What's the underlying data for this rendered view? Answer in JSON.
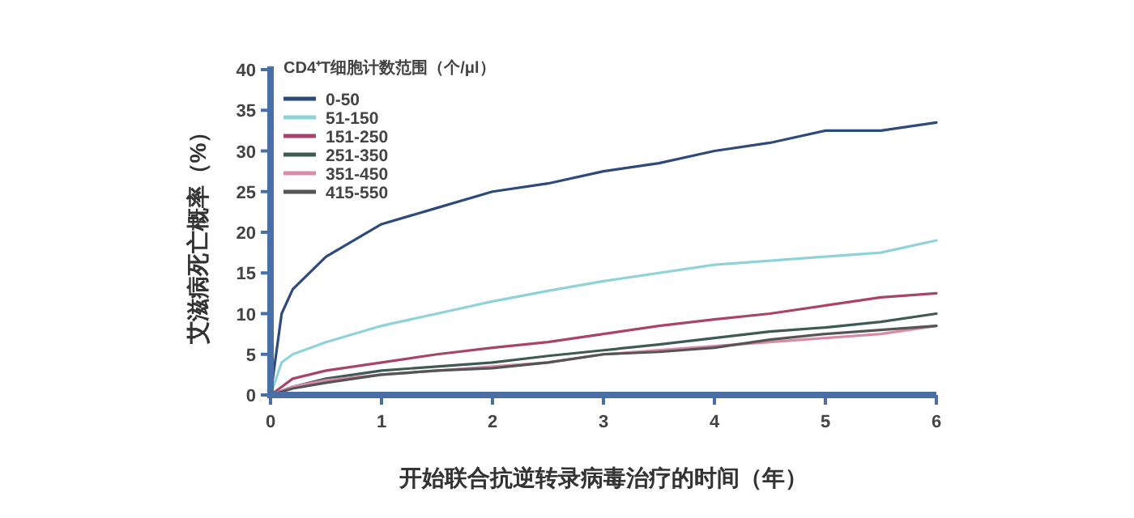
{
  "chart_data": {
    "type": "line",
    "legend_title": "CD4⁺T细胞计数范围（个/μl）",
    "xlabel": "开始联合抗逆转录病毒治疗的时间（年）",
    "ylabel": "艾滋病死亡概率（%）",
    "x": [
      0,
      0.1,
      0.2,
      0.5,
      1,
      1.5,
      2,
      2.5,
      3,
      3.5,
      4,
      4.5,
      5,
      5.5,
      6
    ],
    "series": [
      {
        "name": "0-50",
        "color": "#2e4a7a",
        "values": [
          0,
          10,
          13,
          17,
          21,
          23,
          25,
          26,
          27.5,
          28.5,
          30,
          31,
          32.5,
          32.5,
          33.5
        ]
      },
      {
        "name": "51-150",
        "color": "#8fd3d9",
        "values": [
          0,
          4,
          5,
          6.5,
          8.5,
          10,
          11.5,
          12.8,
          14,
          15,
          16,
          16.5,
          17,
          17.5,
          19
        ]
      },
      {
        "name": "151-250",
        "color": "#a8446a",
        "values": [
          0,
          1,
          2,
          3,
          4,
          5,
          5.8,
          6.5,
          7.5,
          8.5,
          9.3,
          10,
          11,
          12,
          12.5
        ]
      },
      {
        "name": "251-350",
        "color": "#3f5a55",
        "values": [
          0,
          0.5,
          1,
          2,
          3,
          3.5,
          4,
          4.8,
          5.5,
          6.2,
          7,
          7.8,
          8.3,
          9,
          10
        ]
      },
      {
        "name": "351-450",
        "color": "#d98aa8",
        "values": [
          0,
          0.5,
          1,
          1.8,
          2.5,
          3,
          3.5,
          4,
          5,
          5.5,
          6,
          6.5,
          7,
          7.5,
          8.5
        ]
      },
      {
        "name": "415-550",
        "color": "#555555",
        "values": [
          0,
          0.4,
          0.8,
          1.5,
          2.5,
          3,
          3.3,
          4,
          5,
          5.3,
          5.8,
          6.8,
          7.5,
          8,
          8.5
        ]
      }
    ],
    "xlim": [
      0,
      6
    ],
    "ylim": [
      0,
      40
    ],
    "xticks": [
      0,
      1,
      2,
      3,
      4,
      5,
      6
    ],
    "yticks": [
      0,
      5,
      10,
      15,
      20,
      25,
      30,
      35,
      40
    ],
    "legend": "top left"
  }
}
